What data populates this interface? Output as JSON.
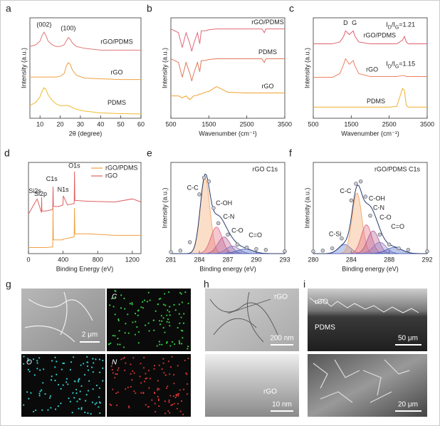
{
  "chart_data": [
    {
      "type": "line",
      "panel": "a",
      "xlabel": "2θ (degree)",
      "ylabel": "Intensity (a.u.)",
      "x": [
        5,
        8,
        10,
        11,
        12,
        13,
        14,
        16,
        18,
        20,
        22,
        23,
        24,
        25,
        26,
        28,
        32,
        40,
        50,
        60
      ],
      "series": [
        {
          "name": "rGO/PDMS",
          "color": "#e07878",
          "values": [
            2.0,
            2.05,
            2.15,
            2.3,
            2.4,
            2.3,
            2.15,
            2.05,
            2.0,
            2.0,
            2.05,
            2.15,
            2.25,
            2.2,
            2.1,
            2.0,
            1.95,
            1.9,
            1.9,
            1.9
          ]
        },
        {
          "name": "rGO",
          "color": "#f0a040",
          "values": [
            1.15,
            1.15,
            1.15,
            1.15,
            1.15,
            1.15,
            1.15,
            1.15,
            1.15,
            1.17,
            1.25,
            1.45,
            1.55,
            1.5,
            1.35,
            1.2,
            1.12,
            1.1,
            1.08,
            1.08
          ]
        },
        {
          "name": "PDMS",
          "color": "#f0b830",
          "values": [
            0.35,
            0.45,
            0.6,
            0.75,
            0.85,
            0.8,
            0.65,
            0.5,
            0.4,
            0.35,
            0.35,
            0.36,
            0.35,
            0.33,
            0.3,
            0.25,
            0.2,
            0.15,
            0.13,
            0.12
          ]
        }
      ],
      "annotations": [
        "(002)",
        "(100)"
      ],
      "xlim": [
        5,
        60
      ],
      "xticks": [
        10,
        20,
        30,
        40,
        50,
        60
      ],
      "ylim": [
        0,
        2.8
      ]
    },
    {
      "type": "line",
      "panel": "b",
      "xlabel": "Wavenumber (cm⁻¹)",
      "ylabel": "Intensity (a.u.)",
      "x": [
        500,
        700,
        800,
        900,
        1000,
        1050,
        1100,
        1200,
        1260,
        1300,
        1400,
        1500,
        1700,
        2000,
        2500,
        2900,
        2960,
        3000,
        3200,
        3500
      ],
      "series": [
        {
          "name": "rGO/PDMS",
          "color": "#e06878",
          "values": [
            2.4,
            2.3,
            1.9,
            2.3,
            2.0,
            1.8,
            2.0,
            2.3,
            2.0,
            2.35,
            2.35,
            2.38,
            2.4,
            2.4,
            2.4,
            2.4,
            2.3,
            2.4,
            2.4,
            2.4
          ]
        },
        {
          "name": "PDMS",
          "color": "#e07858",
          "values": [
            1.6,
            1.5,
            1.1,
            1.5,
            1.2,
            1.0,
            1.2,
            1.5,
            1.25,
            1.55,
            1.55,
            1.58,
            1.6,
            1.6,
            1.6,
            1.6,
            1.5,
            1.6,
            1.6,
            1.6
          ]
        },
        {
          "name": "rGO",
          "color": "#f0a030",
          "values": [
            0.6,
            0.6,
            0.55,
            0.6,
            0.5,
            0.55,
            0.6,
            0.62,
            0.65,
            0.65,
            0.7,
            0.72,
            0.85,
            0.7,
            0.68,
            0.68,
            0.68,
            0.68,
            0.68,
            0.68
          ]
        }
      ],
      "annotations": [],
      "xlim": [
        500,
        3500
      ],
      "xticks": [
        500,
        1500,
        2500,
        3500
      ],
      "ylim": [
        0,
        2.7
      ]
    },
    {
      "type": "line",
      "panel": "c",
      "xlabel": "Wavenumber (cm⁻¹)",
      "ylabel": "Intensity (a.u.)",
      "x": [
        500,
        1000,
        1200,
        1300,
        1350,
        1450,
        1550,
        1600,
        1700,
        2000,
        2500,
        2700,
        2850,
        2900,
        2950,
        3000,
        3500
      ],
      "series": [
        {
          "name": "rGO/PDMS",
          "color": "#e06070",
          "values": [
            2.0,
            2.0,
            2.05,
            2.2,
            2.35,
            2.25,
            2.35,
            2.2,
            2.05,
            2.0,
            2.0,
            2.0,
            2.1,
            2.2,
            2.05,
            2.0,
            2.0
          ]
        },
        {
          "name": "rGO",
          "color": "#f08060",
          "values": [
            1.1,
            1.1,
            1.2,
            1.45,
            1.6,
            1.45,
            1.55,
            1.4,
            1.2,
            1.12,
            1.12,
            1.12,
            1.15,
            1.15,
            1.12,
            1.12,
            1.12
          ]
        },
        {
          "name": "PDMS",
          "color": "#f0b030",
          "values": [
            0.3,
            0.3,
            0.3,
            0.3,
            0.3,
            0.3,
            0.3,
            0.3,
            0.3,
            0.3,
            0.3,
            0.32,
            0.8,
            0.75,
            0.35,
            0.3,
            0.3
          ]
        }
      ],
      "annotations": [
        "D",
        "G",
        [
          "I",
          "D",
          "/I",
          "G",
          "=1.21"
        ],
        [
          "I",
          "D",
          "/I",
          "G",
          "=1.15"
        ]
      ],
      "xlim": [
        500,
        3500
      ],
      "xticks": [
        500,
        1500,
        2500,
        3500
      ],
      "ylim": [
        0,
        2.7
      ]
    },
    {
      "type": "line",
      "panel": "d",
      "xlabel": "Binding Energy (eV)",
      "legend": "upper right",
      "x": [
        0,
        100,
        150,
        152,
        155,
        200,
        280,
        284,
        288,
        350,
        398,
        402,
        450,
        528,
        532,
        536,
        700,
        1000,
        1200,
        1300
      ],
      "series": [
        {
          "name": "rGO/PDMS",
          "color": "#f0a040",
          "values": [
            0.2,
            0.2,
            0.2,
            0.2,
            0.2,
            0.2,
            0.22,
            1.5,
            0.45,
            0.45,
            0.45,
            0.48,
            0.5,
            0.55,
            1.5,
            0.65,
            0.65,
            0.6,
            0.6,
            0.6
          ]
        },
        {
          "name": "rGO",
          "color": "#e06060",
          "values": [
            1.3,
            1.8,
            1.35,
            1.85,
            1.4,
            1.4,
            1.45,
            2.2,
            1.55,
            1.55,
            1.6,
            1.9,
            1.6,
            1.65,
            2.7,
            1.75,
            1.72,
            1.7,
            1.8,
            1.7
          ]
        }
      ],
      "annotations": [
        "Si2s",
        "Si2p",
        "C1s",
        "N1s",
        "O1s"
      ],
      "xlim": [
        0,
        1300
      ],
      "xticks": [
        0,
        400,
        800,
        1200
      ],
      "ylim": [
        0,
        3
      ]
    },
    {
      "type": "peakfit",
      "panel": "e",
      "title": "rGO  C1s",
      "xlabel": "Binding energy (eV)",
      "ylabel": "Intensity (a.u.)",
      "x": [
        281,
        282,
        283,
        284,
        284.5,
        285,
        285.5,
        286,
        287,
        288,
        289,
        290,
        291,
        293
      ],
      "values": [
        0.02,
        0.04,
        0.15,
        0.78,
        1.0,
        0.95,
        0.6,
        0.4,
        0.25,
        0.12,
        0.08,
        0.06,
        0.05,
        0.03
      ],
      "components": [
        {
          "name": "C-C",
          "color": "#f0a060",
          "center": 284.6,
          "height": 1.0,
          "fwhm": 1.2
        },
        {
          "name": "C-OH",
          "color": "#e0607a",
          "center": 285.8,
          "height": 0.35,
          "fwhm": 1.4
        },
        {
          "name": "C-N",
          "color": "#b05a90",
          "center": 286.6,
          "height": 0.22,
          "fwhm": 1.5
        },
        {
          "name": "C-O",
          "color": "#8a78c0",
          "center": 287.5,
          "height": 0.1,
          "fwhm": 1.6
        },
        {
          "name": "C=O",
          "color": "#4060c0",
          "center": 288.8,
          "height": 0.06,
          "fwhm": 2
        }
      ],
      "xlim": [
        281,
        293
      ],
      "xticks": [
        281,
        284,
        287,
        290,
        293
      ],
      "ylim": [
        0,
        1.2
      ]
    },
    {
      "type": "peakfit",
      "panel": "f",
      "title": "rGO/PDMS  C1s",
      "xlabel": "Binding energy (eV)",
      "ylabel": "Intensity (a.u.)",
      "x": [
        280,
        281,
        282,
        283,
        284,
        284.5,
        285,
        285.5,
        286,
        287,
        288,
        289,
        290,
        292
      ],
      "values": [
        0.03,
        0.04,
        0.07,
        0.2,
        0.7,
        0.92,
        0.95,
        0.75,
        0.5,
        0.25,
        0.12,
        0.07,
        0.05,
        0.03
      ],
      "components": [
        {
          "name": "C-Si",
          "color": "#5070d0",
          "center": 283.3,
          "height": 0.12,
          "fwhm": 1.5
        },
        {
          "name": "C-C",
          "color": "#f0a060",
          "center": 284.6,
          "height": 0.8,
          "fwhm": 1.2
        },
        {
          "name": "C-OH",
          "color": "#e0607a",
          "center": 285.6,
          "height": 0.38,
          "fwhm": 1.3
        },
        {
          "name": "C-N",
          "color": "#b05a90",
          "center": 286.3,
          "height": 0.3,
          "fwhm": 1.4
        },
        {
          "name": "C-O",
          "color": "#8a78c0",
          "center": 287.0,
          "height": 0.15,
          "fwhm": 1.6
        },
        {
          "name": "C=O",
          "color": "#4060c0",
          "center": 288.5,
          "height": 0.08,
          "fwhm": 2
        }
      ],
      "xlim": [
        280,
        292
      ],
      "xticks": [
        280,
        284,
        288,
        292
      ],
      "ylim": [
        0,
        1.2
      ]
    }
  ],
  "micrographs": {
    "g": {
      "panel": "g",
      "scale": "2 μm",
      "maps": [
        "C",
        "O",
        "N"
      ]
    },
    "h": {
      "panel": "h",
      "top_label": "rGO",
      "top_scale": "200 nm",
      "bottom_label": "rGO",
      "bottom_scale": "10 nm"
    },
    "i": {
      "panel": "i",
      "top_label": "rGO",
      "top_label2": "PDMS",
      "top_scale": "50 μm",
      "bottom_scale": "20 μm"
    }
  }
}
